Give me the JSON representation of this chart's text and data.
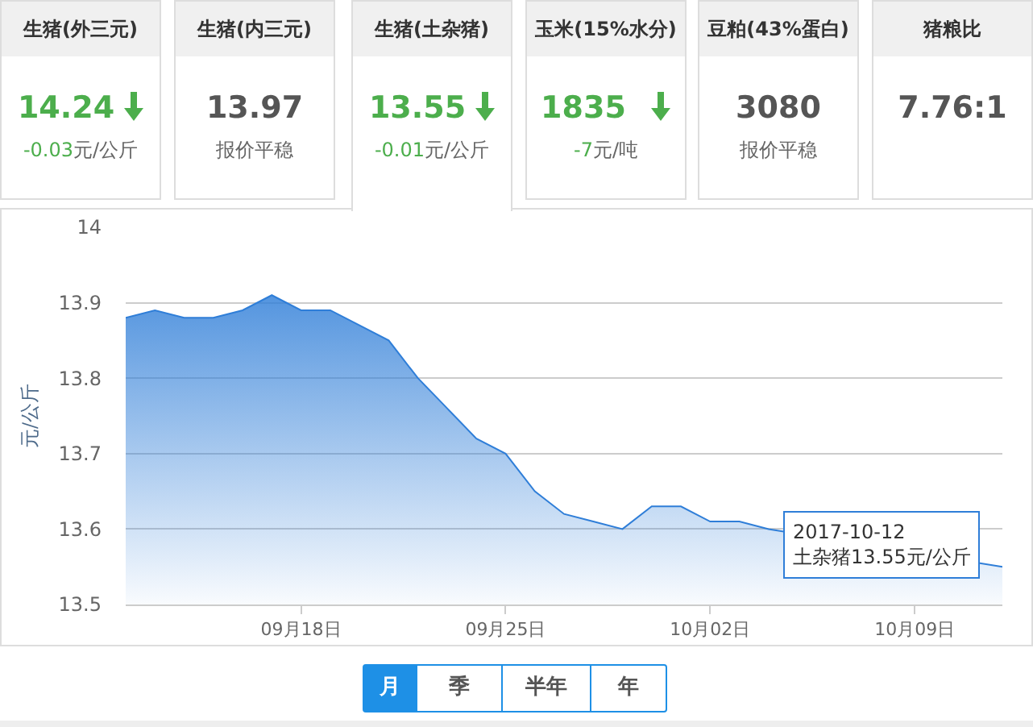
{
  "chart_data": [
    {
      "type": "other",
      "categories": [
        "生猪(外三元)",
        "生猪(内三元)",
        "生猪(土杂猪)",
        "玉米(15%水分)",
        "豆粕(43%蛋白)",
        "猪粮比"
      ],
      "value_labels": [
        "14.24",
        "13.97",
        "13.55",
        "1835",
        "3080",
        "7.76:1"
      ],
      "annotations": [
        "-0.03元/公斤",
        "报价平稳",
        "-0.01元/公斤",
        "-7元/吨",
        "报价平稳"
      ]
    },
    {
      "type": "area",
      "ylabel": "元/公斤",
      "x": [
        "2017-09-12",
        "2017-09-13",
        "2017-09-14",
        "2017-09-15",
        "2017-09-16",
        "2017-09-17",
        "2017-09-18",
        "2017-09-19",
        "2017-09-20",
        "2017-09-21",
        "2017-09-22",
        "2017-09-23",
        "2017-09-24",
        "2017-09-25",
        "2017-09-26",
        "2017-09-27",
        "2017-09-28",
        "2017-09-29",
        "2017-09-30",
        "2017-10-01",
        "2017-10-02",
        "2017-10-03",
        "2017-10-04",
        "2017-10-05",
        "2017-10-06",
        "2017-10-07",
        "2017-10-08",
        "2017-10-09",
        "2017-10-10",
        "2017-10-11",
        "2017-10-12"
      ],
      "series": [
        {
          "color": "#2f7ed8",
          "values": [
            13.88,
            13.89,
            13.88,
            13.88,
            13.89,
            13.91,
            13.89,
            13.89,
            13.87,
            13.85,
            13.8,
            13.76,
            13.72,
            13.7,
            13.65,
            13.62,
            13.61,
            13.6,
            13.63,
            13.63,
            13.61,
            13.61,
            13.6,
            null,
            null,
            null,
            null,
            null,
            null,
            null,
            13.55
          ]
        }
      ],
      "xlim": [
        "2017-09-12",
        "2017-10-12"
      ],
      "xticks": [
        {
          "value": "2017-09-18",
          "label": "09月18日"
        },
        {
          "value": "2017-09-25",
          "label": "09月25日"
        },
        {
          "value": "2017-10-02",
          "label": "10月02日"
        },
        {
          "value": "2017-10-09",
          "label": "10月09日"
        }
      ],
      "ylim": [
        13.5,
        14
      ],
      "yticks": [
        13.5,
        13.6,
        13.7,
        13.8,
        13.9,
        14
      ],
      "grid": "y",
      "annotations": [
        {
          "text": "2017-10-12\n土杂猪13.55元/公斤",
          "x": "2017-10-12",
          "y": 13.55
        }
      ]
    },
    {
      "type": "other",
      "annotations": [
        "月",
        "季",
        "半年",
        "年"
      ]
    }
  ]
}
